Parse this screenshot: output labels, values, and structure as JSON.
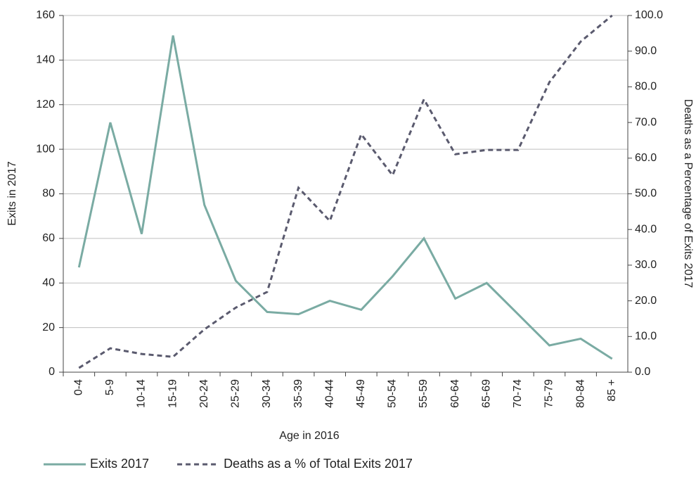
{
  "chart_data": {
    "type": "line",
    "xlabel": "Age in 2016",
    "ylabel": "Exits in 2017",
    "y2label": "Deaths as a Percentage of Exits 2017",
    "categories": [
      "0-4",
      "5-9",
      "10-14",
      "15-19",
      "20-24",
      "25-29",
      "30-34",
      "35-39",
      "40-44",
      "45-49",
      "50-54",
      "55-59",
      "60-64",
      "65-69",
      "70-74",
      "75-79",
      "80-84",
      "85 +"
    ],
    "series": [
      {
        "name": "Exits 2017",
        "color": "#7aaba3",
        "values": [
          47,
          112,
          62,
          151,
          75,
          41,
          27,
          26,
          32,
          28,
          43,
          60,
          33,
          40,
          26,
          12,
          15,
          6
        ]
      },
      {
        "name": "Deaths as a % of Total Exits 2017",
        "color": "#5a5a6e",
        "dashed": true,
        "axis": "y2",
        "values": [
          1.2,
          6.7,
          5.1,
          4.3,
          12.0,
          18.1,
          22.5,
          51.7,
          42.4,
          66.7,
          55.2,
          76.5,
          61.1,
          62.3,
          62.3,
          81.3,
          92.7,
          100
        ]
      }
    ],
    "ylim": [
      0,
      160
    ],
    "yticks": [
      0,
      20,
      40,
      60,
      80,
      100,
      120,
      140,
      160
    ],
    "y2lim": [
      0,
      100
    ],
    "y2ticks": [
      {
        "value": 0,
        "label": "0.0"
      },
      {
        "value": 10,
        "label": "10.0"
      },
      {
        "value": 20,
        "label": "20.0"
      },
      {
        "value": 30,
        "label": "30.0"
      },
      {
        "value": 40,
        "label": "40.0"
      },
      {
        "value": 50,
        "label": "50.0"
      },
      {
        "value": 60,
        "label": "60.0"
      },
      {
        "value": 70,
        "label": "70.0"
      },
      {
        "value": 80,
        "label": "80.0"
      },
      {
        "value": 90,
        "label": "90.0"
      },
      {
        "value": 100,
        "label": "100.0"
      }
    ],
    "grid": true,
    "legend": "bottom"
  }
}
